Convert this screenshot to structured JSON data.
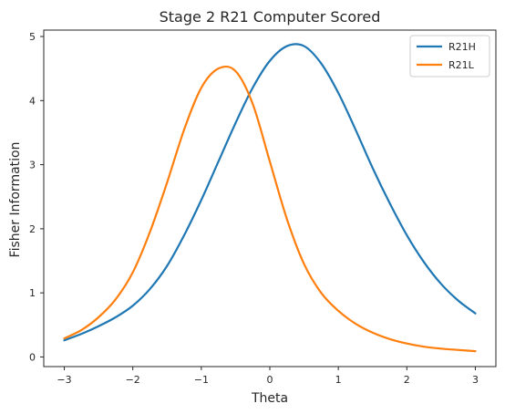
{
  "chart_data": {
    "type": "line",
    "title": "Stage 2 R21 Computer Scored",
    "xlabel": "Theta",
    "ylabel": "Fisher Information",
    "xlim": [
      -3.3,
      3.3
    ],
    "ylim": [
      -0.15,
      5.1
    ],
    "xticks": [
      -3,
      -2,
      -1,
      0,
      1,
      2,
      3
    ],
    "yticks": [
      0,
      1,
      2,
      3,
      4,
      5
    ],
    "grid": false,
    "legend_position": "top-right",
    "series": [
      {
        "name": "R21H",
        "color": "#1f77b4",
        "x": [
          -3.0,
          -2.75,
          -2.5,
          -2.25,
          -2.0,
          -1.75,
          -1.5,
          -1.25,
          -1.0,
          -0.75,
          -0.5,
          -0.25,
          0.0,
          0.25,
          0.5,
          0.75,
          1.0,
          1.25,
          1.5,
          1.75,
          2.0,
          2.25,
          2.5,
          2.75,
          3.0
        ],
        "y": [
          0.26,
          0.36,
          0.48,
          0.62,
          0.8,
          1.06,
          1.42,
          1.9,
          2.45,
          3.05,
          3.65,
          4.2,
          4.62,
          4.85,
          4.85,
          4.58,
          4.12,
          3.55,
          2.95,
          2.4,
          1.9,
          1.48,
          1.14,
          0.88,
          0.68
        ]
      },
      {
        "name": "R21L",
        "color": "#ff7f0e",
        "x": [
          -3.0,
          -2.75,
          -2.5,
          -2.25,
          -2.0,
          -1.75,
          -1.5,
          -1.25,
          -1.0,
          -0.75,
          -0.5,
          -0.25,
          0.0,
          0.25,
          0.5,
          0.75,
          1.0,
          1.25,
          1.5,
          1.75,
          2.0,
          2.25,
          2.5,
          2.75,
          3.0
        ],
        "y": [
          0.29,
          0.42,
          0.62,
          0.9,
          1.32,
          1.95,
          2.72,
          3.55,
          4.2,
          4.5,
          4.46,
          3.95,
          3.05,
          2.15,
          1.45,
          1.0,
          0.72,
          0.52,
          0.38,
          0.28,
          0.21,
          0.16,
          0.13,
          0.11,
          0.09
        ]
      }
    ]
  }
}
